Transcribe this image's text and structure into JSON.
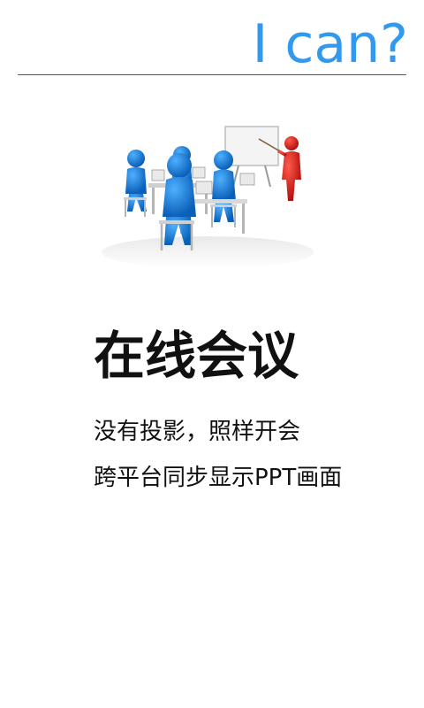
{
  "header": {
    "brand_text": "I can?",
    "brand_color": "#3399ee"
  },
  "illustration": {
    "icon": "meeting-presentation-illustration"
  },
  "feature": {
    "title": "在线会议",
    "lines": [
      "没有投影，照样开会",
      "跨平台同步显示PPT画面"
    ]
  }
}
